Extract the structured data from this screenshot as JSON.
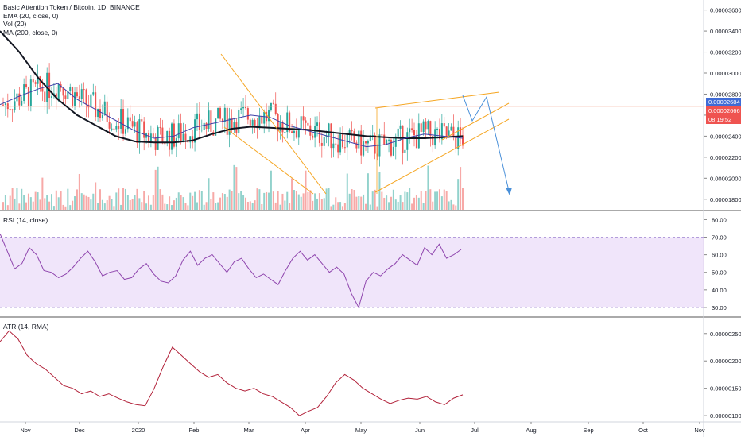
{
  "legend": {
    "title": "Basic Attention Token / Bitcoin, 1D, BINANCE",
    "ema": "EMA (20, close, 0)",
    "vol": "Vol (20)",
    "ma": "MA (200, close, 0)"
  },
  "panes": {
    "rsi_title": "RSI (14, close)",
    "atr_title": "ATR (14, RMA)"
  },
  "price_tags": {
    "last": "0.00002684",
    "current": "0.00002666",
    "countdown": "08:19:52"
  },
  "colors": {
    "up": "#26a69a",
    "down": "#ef5350",
    "ema": "#3f3fa8",
    "ma": "#131722",
    "pattern": "#f5a623",
    "projection": "#4a90d9",
    "rsi_line": "#8e44ad",
    "rsi_band": "#e6d4f7",
    "atr_line": "#b2223a",
    "hline": "#f4a28c"
  },
  "chart_data": [
    {
      "type": "line",
      "pane": "price",
      "series": [
        {
          "name": "EMA (20, close, 0)",
          "values": [
            2.7e-05,
            2.78e-05,
            2.85e-05,
            2.9e-05,
            2.75e-05,
            2.65e-05,
            2.55e-05,
            2.45e-05,
            2.38e-05,
            2.4e-05,
            2.48e-05,
            2.52e-05,
            2.56e-05,
            2.6e-05,
            2.58e-05,
            2.5e-05,
            2.45e-05,
            2.4e-05,
            2.35e-05,
            2.3e-05,
            2.32e-05,
            2.38e-05,
            2.42e-05,
            2.4e-05,
            2.38e-05
          ]
        },
        {
          "name": "MA (200, close, 0)",
          "values": [
            3.4e-05,
            3.2e-05,
            2.95e-05,
            2.75e-05,
            2.6e-05,
            2.5e-05,
            2.4e-05,
            2.35e-05,
            2.34e-05,
            2.34e-05,
            2.36e-05,
            2.42e-05,
            2.47e-05,
            2.49e-05,
            2.48e-05,
            2.47e-05,
            2.46e-05,
            2.44e-05,
            2.42e-05,
            2.4e-05,
            2.39e-05,
            2.38e-05,
            2.38e-05,
            2.39e-05,
            2.4e-05
          ]
        }
      ],
      "x": [
        "Nov",
        "",
        "Dec",
        "",
        "2020",
        "",
        "Feb",
        "",
        "Mar",
        "",
        "Apr",
        "",
        "May",
        "",
        "Jun",
        "",
        "",
        "",
        "",
        "",
        "",
        "",
        "",
        "",
        ""
      ],
      "y_ticks": [
        "0.00003600",
        "0.00003400",
        "0.00003200",
        "0.00003000",
        "0.00002800",
        "0.00002600",
        "0.00002400",
        "0.00002200",
        "0.00002000",
        "0.00001800"
      ],
      "ylim": [
        1.7e-05,
        3.65e-05
      ]
    },
    {
      "type": "line",
      "pane": "rsi",
      "title": "RSI (14, close)",
      "y_ticks": [
        "80.00",
        "70.00",
        "60.00",
        "50.00",
        "40.00",
        "30.00"
      ],
      "ylim": [
        25,
        82
      ],
      "band": [
        30,
        70
      ],
      "values": [
        72,
        62,
        52,
        55,
        64,
        60,
        51,
        50,
        47,
        49,
        53,
        58,
        62,
        56,
        48,
        50,
        51,
        46,
        47,
        52,
        55,
        49,
        45,
        44,
        48,
        57,
        62,
        54,
        58,
        60,
        55,
        50,
        56,
        58,
        52,
        47,
        49,
        46,
        43,
        51,
        58,
        62,
        57,
        60,
        55,
        50,
        53,
        49,
        38,
        30,
        45,
        50,
        48,
        52,
        55,
        60,
        57,
        54,
        64,
        60,
        66,
        58,
        60,
        63
      ]
    },
    {
      "type": "line",
      "pane": "atr",
      "title": "ATR (14, RMA)",
      "y_ticks": [
        "0.00000250",
        "0.00000200",
        "0.00000150",
        "0.00000100"
      ],
      "ylim": [
        9e-07,
        2.7e-06
      ],
      "values": [
        2.35e-06,
        2.55e-06,
        2.4e-06,
        2.1e-06,
        1.95e-06,
        1.85e-06,
        1.7e-06,
        1.55e-06,
        1.5e-06,
        1.4e-06,
        1.45e-06,
        1.35e-06,
        1.4e-06,
        1.32e-06,
        1.25e-06,
        1.2e-06,
        1.18e-06,
        1.5e-06,
        1.9e-06,
        2.25e-06,
        2.1e-06,
        1.95e-06,
        1.8e-06,
        1.7e-06,
        1.75e-06,
        1.6e-06,
        1.5e-06,
        1.45e-06,
        1.5e-06,
        1.4e-06,
        1.35e-06,
        1.25e-06,
        1.15e-06,
        1e-06,
        1.08e-06,
        1.15e-06,
        1.35e-06,
        1.6e-06,
        1.75e-06,
        1.65e-06,
        1.5e-06,
        1.4e-06,
        1.3e-06,
        1.22e-06,
        1.28e-06,
        1.32e-06,
        1.3e-06,
        1.35e-06,
        1.25e-06,
        1.2e-06,
        1.32e-06,
        1.38e-06
      ]
    }
  ],
  "x_axis": [
    "Nov",
    "Dec",
    "2020",
    "Feb",
    "Mar",
    "Apr",
    "May",
    "Jun",
    "Jul",
    "Aug",
    "Sep",
    "Oct",
    "Nov"
  ]
}
